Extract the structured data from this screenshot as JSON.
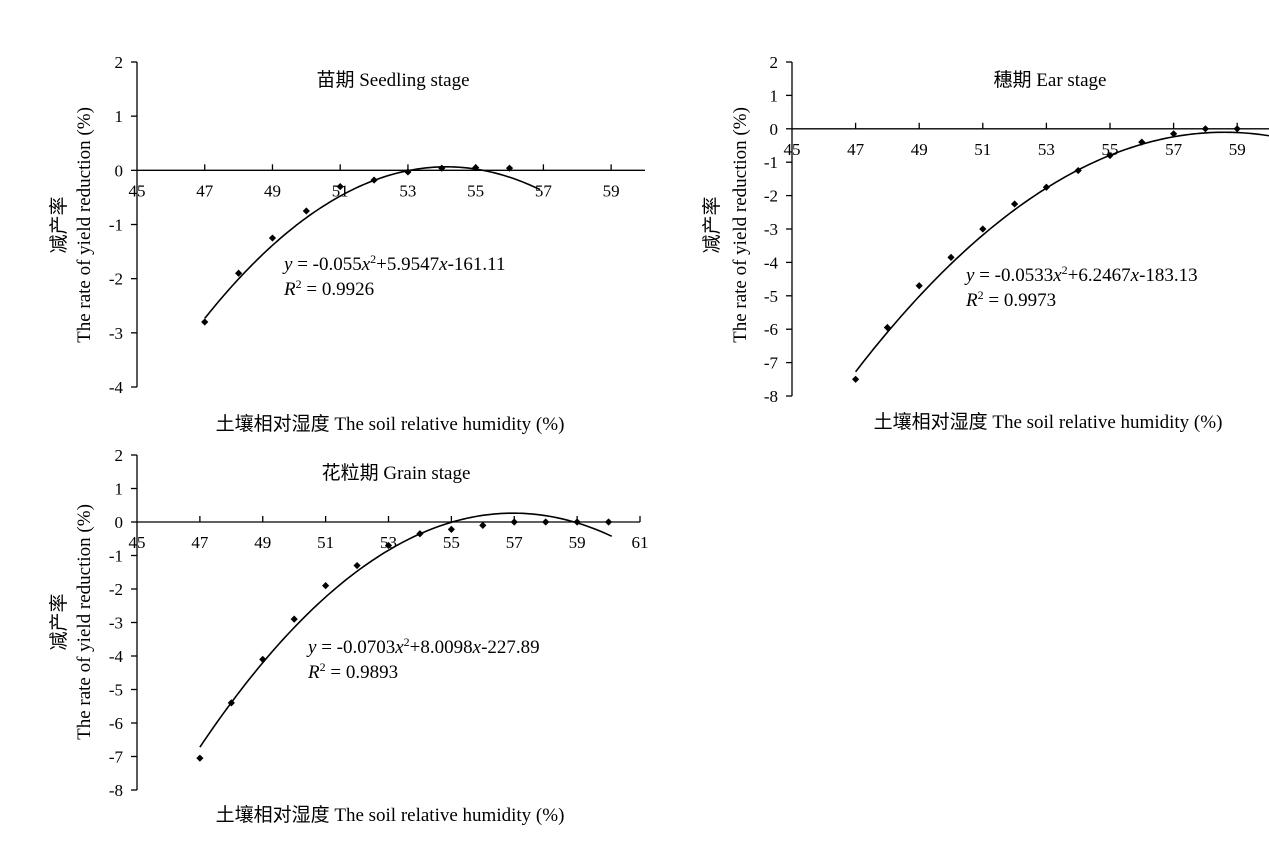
{
  "chart_data": [
    {
      "type": "scatter",
      "title": "苗期 Seedling stage",
      "xlabel": "土壤相对湿度 The soil relative humidity (%)",
      "ylabel_cn": "减产率",
      "ylabel_en": "The rate of yield reduction (%)",
      "xlim": [
        45,
        60
      ],
      "ylim": [
        -4,
        2
      ],
      "x_ticks": [
        45,
        47,
        49,
        51,
        53,
        55,
        57,
        59
      ],
      "y_ticks": [
        2,
        1,
        0,
        -1,
        -2,
        -3,
        -4
      ],
      "x": [
        47,
        48,
        49,
        50,
        51,
        52,
        53,
        54,
        55,
        56
      ],
      "y": [
        -2.8,
        -1.9,
        -1.25,
        -0.75,
        -0.3,
        -0.18,
        -0.03,
        0.04,
        0.05,
        0.04
      ],
      "fit": {
        "a": -0.055,
        "b": 5.9547,
        "c": -161.11,
        "x_range": [
          47,
          56.9
        ]
      },
      "equation": {
        "y": "y",
        "eq": " = -0.055",
        "x1": "x",
        "sup": "2",
        "mid": "+5.9547",
        "x2": "x",
        "tail": "-161.11"
      },
      "r2": {
        "R": "R",
        "sup": "2",
        "rest": " = 0.9926"
      }
    },
    {
      "type": "scatter",
      "title": "穗期 Ear stage",
      "xlabel": "土壤相对湿度 The soil relative humidity (%)",
      "ylabel_cn": "减产率",
      "ylabel_en": "The rate of yield reduction (%)",
      "xlim": [
        45,
        60
      ],
      "ylim": [
        -8,
        2
      ],
      "x_ticks": [
        45,
        47,
        49,
        51,
        53,
        55,
        57,
        59
      ],
      "y_ticks": [
        2,
        1,
        0,
        -1,
        -2,
        -3,
        -4,
        -5,
        -6,
        -7,
        -8
      ],
      "x": [
        47,
        48,
        49,
        50,
        51,
        52,
        53,
        54,
        55,
        56,
        57,
        58,
        59
      ],
      "y": [
        -7.5,
        -5.95,
        -4.7,
        -3.85,
        -3.0,
        -2.25,
        -1.75,
        -1.25,
        -0.8,
        -0.4,
        -0.15,
        0.0,
        0.0
      ],
      "fit": {
        "a": -0.0533,
        "b": 6.2467,
        "c": -183.13,
        "x_range": [
          47,
          60
        ]
      },
      "equation": {
        "y": "y",
        "eq": " = -0.0533",
        "x1": "x",
        "sup": "2",
        "mid": "+6.2467",
        "x2": "x",
        "tail": "-183.13"
      },
      "r2": {
        "R": "R",
        "sup": "2",
        "rest": " = 0.9973"
      }
    },
    {
      "type": "scatter",
      "title": "花粒期 Grain stage",
      "xlabel": "土壤相对湿度 The soil relative humidity (%)",
      "ylabel_cn": "减产率",
      "ylabel_en": "The rate of yield reduction (%)",
      "xlim": [
        45,
        61
      ],
      "ylim": [
        -8,
        2
      ],
      "x_ticks": [
        45,
        47,
        49,
        51,
        53,
        55,
        57,
        59,
        61
      ],
      "y_ticks": [
        2,
        1,
        0,
        -1,
        -2,
        -3,
        -4,
        -5,
        -6,
        -7,
        -8
      ],
      "x": [
        47,
        48,
        49,
        50,
        51,
        52,
        53,
        54,
        55,
        56,
        57,
        58,
        59,
        60
      ],
      "y": [
        -7.05,
        -5.4,
        -4.1,
        -2.9,
        -1.9,
        -1.3,
        -0.7,
        -0.35,
        -0.22,
        -0.1,
        0.0,
        0.0,
        0.0,
        0.0
      ],
      "fit": {
        "a": -0.0703,
        "b": 8.0098,
        "c": -227.89,
        "x_range": [
          47,
          60.1
        ]
      },
      "equation": {
        "y": "y",
        "eq": " = -0.0703",
        "x1": "x",
        "sup": "2",
        "mid": "+8.0098",
        "x2": "x",
        "tail": "-227.89"
      },
      "r2": {
        "R": "R",
        "sup": "2",
        "rest": " = 0.9893"
      }
    }
  ]
}
